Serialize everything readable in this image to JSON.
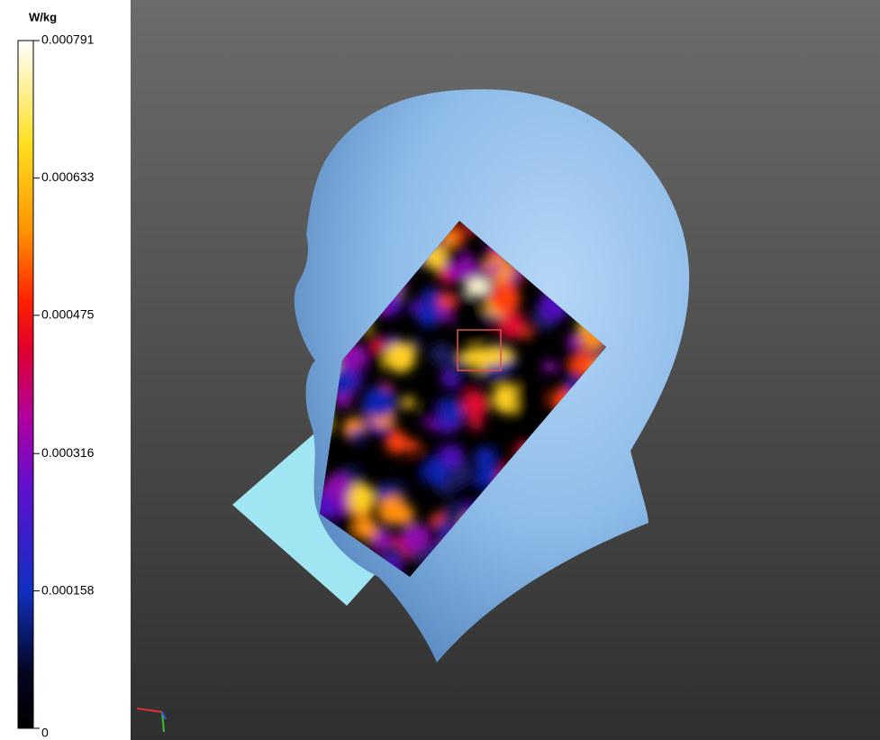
{
  "colorbar": {
    "unit": "W/kg",
    "ticks": [
      0,
      0.000158,
      0.000316,
      0.000475,
      0.000633,
      0.000791
    ]
  }
}
